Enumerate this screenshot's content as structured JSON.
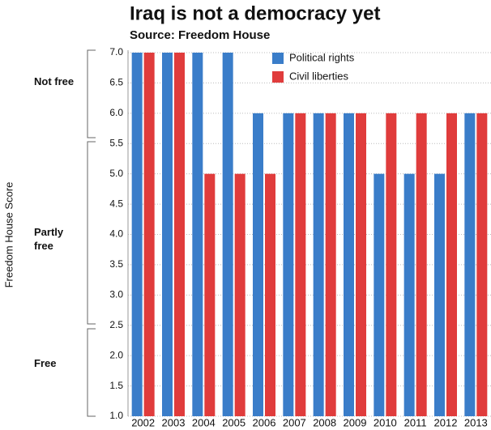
{
  "chart_data": {
    "type": "bar",
    "title": "Iraq is not a democracy yet",
    "subtitle": "Source: Freedom House",
    "y_label": "Freedom House Score",
    "bands": [
      "Not free",
      "Partly free",
      "Free"
    ],
    "categories": [
      "2002",
      "2003",
      "2004",
      "2005",
      "2006",
      "2007",
      "2008",
      "2009",
      "2010",
      "2011",
      "2012",
      "2013"
    ],
    "series": [
      {
        "name": "Political rights",
        "color": "#3a7dc9",
        "values": [
          7,
          7,
          7,
          7,
          6,
          6,
          6,
          6,
          5,
          5,
          5,
          6
        ]
      },
      {
        "name": "Civil liberties",
        "color": "#e03c3c",
        "values": [
          7,
          7,
          5,
          5,
          5,
          6,
          6,
          6,
          6,
          6,
          6,
          6
        ]
      }
    ],
    "ylim": [
      1,
      7
    ],
    "yticks": [
      {
        "value": 1,
        "label": "1.0"
      },
      {
        "value": 1.5,
        "label": "1.5"
      },
      {
        "value": 2,
        "label": "2.0"
      },
      {
        "value": 2.5,
        "label": "2.5"
      },
      {
        "value": 3,
        "label": "3.0"
      },
      {
        "value": 3.5,
        "label": "3.5"
      },
      {
        "value": 4,
        "label": "4.0"
      },
      {
        "value": 4.5,
        "label": "4.5"
      },
      {
        "value": 5,
        "label": "5.0"
      },
      {
        "value": 5.5,
        "label": "5.5"
      },
      {
        "value": 6,
        "label": "6.0"
      },
      {
        "value": 6.5,
        "label": "6.5"
      },
      {
        "value": 7,
        "label": "7.0"
      }
    ],
    "grid": true,
    "legend": "top"
  }
}
